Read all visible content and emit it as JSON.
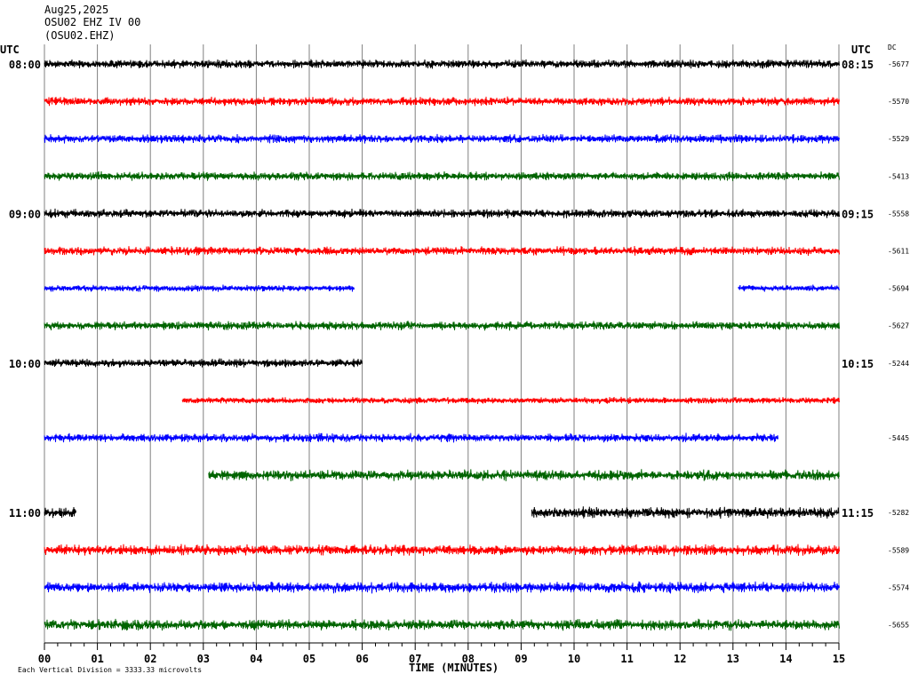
{
  "header": {
    "date": "Aug25,2025",
    "station": "OSU02 EHZ IV 00",
    "code": "(OSU02.EHZ)"
  },
  "left_label": "UTC",
  "right_label": "UTC",
  "dc_label": "DC",
  "footer": {
    "scale_note": "Each Vertical Division = 3333.33 microvolts",
    "xlabel": "TIME (MINUTES)"
  },
  "chart_data": {
    "type": "line",
    "title": "OSU02 EHZ IV 00",
    "xlabel": "TIME (MINUTES)",
    "ylabel": "UTC",
    "x_ticks": [
      "00",
      "01",
      "02",
      "03",
      "04",
      "05",
      "06",
      "07",
      "08",
      "09",
      "10",
      "11",
      "12",
      "13",
      "14",
      "15"
    ],
    "xlim": [
      0,
      15
    ],
    "grid": true,
    "left_hour_labels": [
      {
        "row": 0,
        "label": "08:00"
      },
      {
        "row": 4,
        "label": "09:00"
      },
      {
        "row": 8,
        "label": "10:00"
      },
      {
        "row": 12,
        "label": "11:00"
      }
    ],
    "right_hour_labels": [
      {
        "row": 0,
        "label": "08:15"
      },
      {
        "row": 4,
        "label": "09:15"
      },
      {
        "row": 8,
        "label": "10:15"
      },
      {
        "row": 12,
        "label": "11:15"
      }
    ],
    "colors": [
      "#000000",
      "#ff0000",
      "#0000ff",
      "#006400"
    ],
    "traces": [
      {
        "row": 0,
        "color": "#000000",
        "dc": "-5677",
        "segments": [
          [
            0,
            15
          ]
        ],
        "amp": 4
      },
      {
        "row": 1,
        "color": "#ff0000",
        "dc": "-5570",
        "segments": [
          [
            0,
            15
          ]
        ],
        "amp": 4
      },
      {
        "row": 2,
        "color": "#0000ff",
        "dc": "-5529",
        "segments": [
          [
            0,
            15
          ]
        ],
        "amp": 4
      },
      {
        "row": 3,
        "color": "#006400",
        "dc": "-5413",
        "segments": [
          [
            0,
            15
          ]
        ],
        "amp": 4
      },
      {
        "row": 4,
        "color": "#000000",
        "dc": "-5558",
        "segments": [
          [
            0,
            15
          ]
        ],
        "amp": 4
      },
      {
        "row": 5,
        "color": "#ff0000",
        "dc": "-5611",
        "segments": [
          [
            0,
            15
          ]
        ],
        "amp": 4
      },
      {
        "row": 6,
        "color": "#0000ff",
        "dc": "-5694",
        "segments": [
          [
            0,
            5.85
          ],
          [
            13.1,
            15
          ]
        ],
        "amp": 3
      },
      {
        "row": 7,
        "color": "#006400",
        "dc": "-5627",
        "segments": [
          [
            0,
            15
          ]
        ],
        "amp": 4
      },
      {
        "row": 8,
        "color": "#000000",
        "dc": "-5244",
        "segments": [
          [
            0,
            6.0
          ]
        ],
        "amp": 4
      },
      {
        "row": 9,
        "color": "#ff0000",
        "dc": "",
        "segments": [
          [
            2.6,
            15
          ]
        ],
        "amp": 3
      },
      {
        "row": 10,
        "color": "#0000ff",
        "dc": "-5445",
        "segments": [
          [
            0,
            13.85
          ]
        ],
        "amp": 4
      },
      {
        "row": 11,
        "color": "#006400",
        "dc": "",
        "segments": [
          [
            3.1,
            15
          ]
        ],
        "amp": 5
      },
      {
        "row": 12,
        "color": "#000000",
        "dc": "-5282",
        "segments": [
          [
            0,
            0.6
          ],
          [
            9.2,
            15
          ]
        ],
        "amp": 5
      },
      {
        "row": 13,
        "color": "#ff0000",
        "dc": "-5589",
        "segments": [
          [
            0,
            15
          ]
        ],
        "amp": 5
      },
      {
        "row": 14,
        "color": "#0000ff",
        "dc": "-5574",
        "segments": [
          [
            0,
            15
          ]
        ],
        "amp": 5
      },
      {
        "row": 15,
        "color": "#006400",
        "dc": "-5655",
        "segments": [
          [
            0,
            15
          ]
        ],
        "amp": 5
      }
    ]
  }
}
